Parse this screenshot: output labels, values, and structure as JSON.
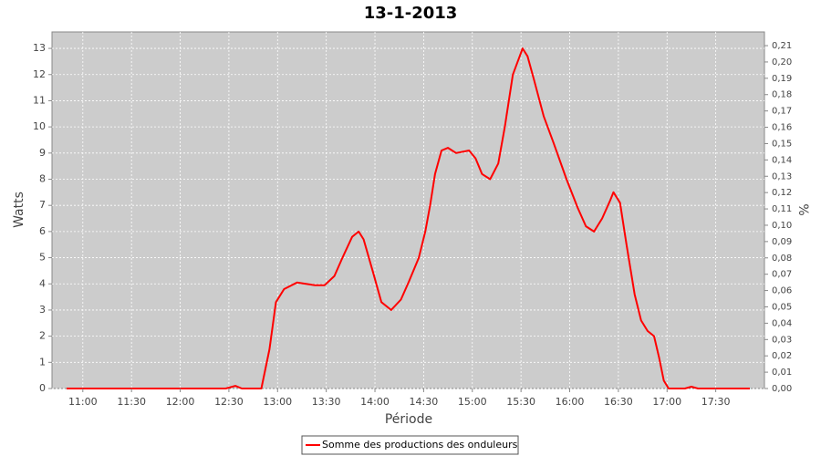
{
  "chart_data": {
    "type": "line",
    "title": "13-1-2013",
    "x_label": "Période",
    "y_label": "Watts",
    "y2_label": "%",
    "xlim": [
      "10:41",
      "18:00"
    ],
    "xticks": [
      "11:00",
      "11:30",
      "12:00",
      "12:30",
      "13:00",
      "13:30",
      "14:00",
      "14:30",
      "15:00",
      "15:30",
      "16:00",
      "16:30",
      "17:00",
      "17:30"
    ],
    "ylim": [
      0,
      13.63
    ],
    "yticks": [
      0,
      1,
      2,
      3,
      4,
      5,
      6,
      7,
      8,
      9,
      10,
      11,
      12,
      13
    ],
    "y2lim": [
      0,
      0.2184
    ],
    "y2ticks": [
      {
        "value": 0,
        "label": "0,00"
      },
      {
        "value": 0.01,
        "label": "0,01"
      },
      {
        "value": 0.02,
        "label": "0,02"
      },
      {
        "value": 0.03,
        "label": "0,03"
      },
      {
        "value": 0.04,
        "label": "0,04"
      },
      {
        "value": 0.05,
        "label": "0,05"
      },
      {
        "value": 0.06,
        "label": "0,06"
      },
      {
        "value": 0.07,
        "label": "0,07"
      },
      {
        "value": 0.08,
        "label": "0,08"
      },
      {
        "value": 0.09,
        "label": "0,09"
      },
      {
        "value": 0.1,
        "label": "0,10"
      },
      {
        "value": 0.11,
        "label": "0,11"
      },
      {
        "value": 0.12,
        "label": "0,12"
      },
      {
        "value": 0.13,
        "label": "0,13"
      },
      {
        "value": 0.14,
        "label": "0,14"
      },
      {
        "value": 0.15,
        "label": "0,15"
      },
      {
        "value": 0.16,
        "label": "0,16"
      },
      {
        "value": 0.17,
        "label": "0,17"
      },
      {
        "value": 0.18,
        "label": "0,18"
      },
      {
        "value": 0.19,
        "label": "0,19"
      },
      {
        "value": 0.2,
        "label": "0,20"
      },
      {
        "value": 0.21,
        "label": "0,21"
      }
    ],
    "grid": true,
    "legend": "bottom",
    "x": [
      "10:50",
      "12:28",
      "12:34",
      "12:38",
      "12:50",
      "12:55",
      "12:59",
      "13:04",
      "13:12",
      "13:23",
      "13:29",
      "13:35",
      "13:40",
      "13:46",
      "13:50",
      "13:53",
      "13:59",
      "14:04",
      "14:10",
      "14:16",
      "14:21",
      "14:27",
      "14:31",
      "14:34",
      "14:37",
      "14:41",
      "14:45",
      "14:50",
      "14:58",
      "15:02",
      "15:06",
      "15:11",
      "15:16",
      "15:20",
      "15:25",
      "15:31",
      "15:34",
      "15:38",
      "15:44",
      "15:50",
      "15:58",
      "16:05",
      "16:10",
      "16:15",
      "16:20",
      "16:25",
      "16:27",
      "16:31",
      "16:35",
      "16:40",
      "16:44",
      "16:48",
      "16:52",
      "16:55",
      "16:58",
      "17:01",
      "17:11",
      "17:15",
      "17:19",
      "17:51"
    ],
    "series": [
      {
        "name": "Somme des productions des onduleurs",
        "color": "#ff0000",
        "values": [
          0,
          0,
          0.1,
          0,
          0,
          1.5,
          3.3,
          3.8,
          4.05,
          3.95,
          3.95,
          4.3,
          5.0,
          5.8,
          6.0,
          5.7,
          4.4,
          3.3,
          3.0,
          3.4,
          4.1,
          5.0,
          6.0,
          7.0,
          8.2,
          9.1,
          9.2,
          9.0,
          9.1,
          8.8,
          8.2,
          8.0,
          8.6,
          10.0,
          12.0,
          13.0,
          12.7,
          11.8,
          10.4,
          9.4,
          8.0,
          6.9,
          6.2,
          6.0,
          6.5,
          7.2,
          7.5,
          7.1,
          5.5,
          3.6,
          2.6,
          2.2,
          2.0,
          1.2,
          0.3,
          0,
          0,
          0.07,
          0,
          0
        ]
      }
    ]
  }
}
